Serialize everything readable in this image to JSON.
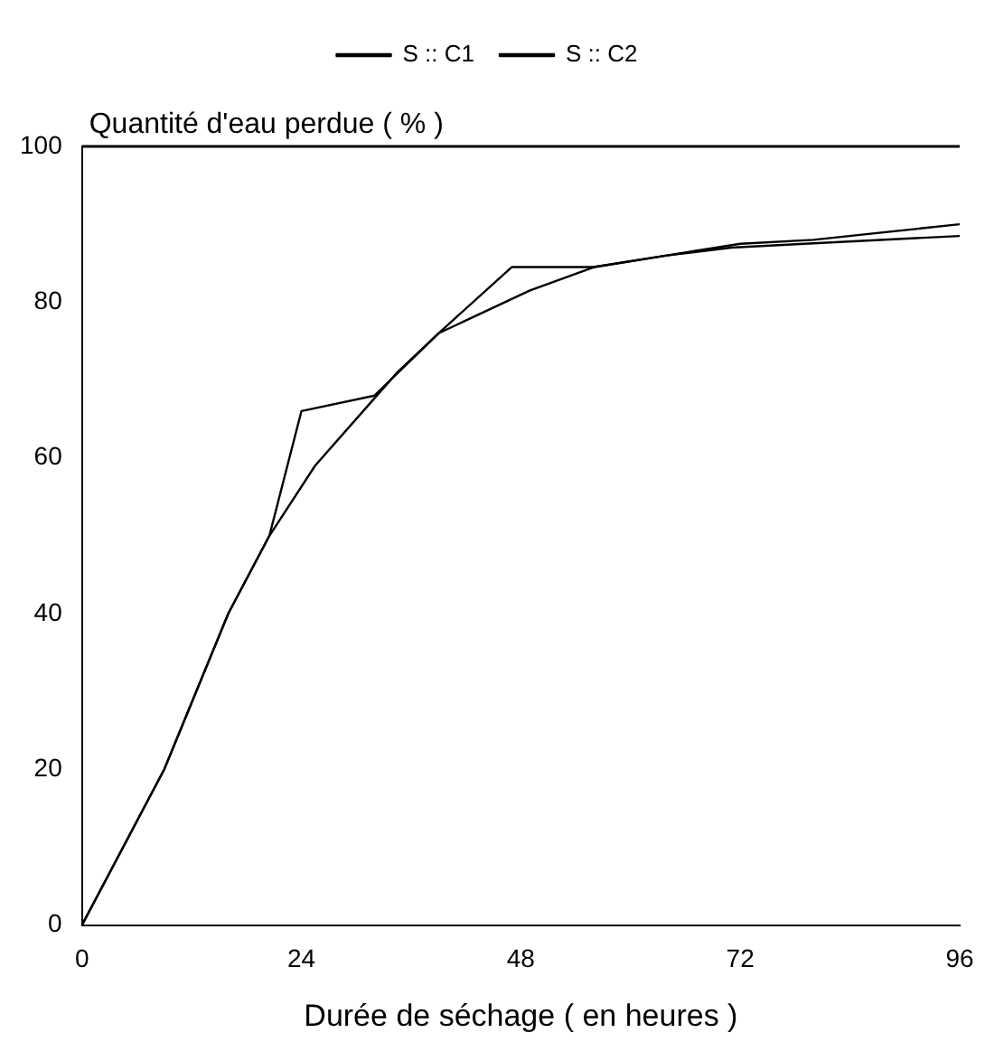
{
  "chart_data": {
    "type": "line",
    "xlabel": "Durée de séchage ( en heures )",
    "ylabel": "Quantité d'eau perdue ( % )",
    "xlim": [
      0,
      96
    ],
    "xticks": [
      0,
      24,
      48,
      72,
      96
    ],
    "ylim": [
      0,
      100
    ],
    "yticks": [
      0,
      20,
      40,
      60,
      80,
      100
    ],
    "grid": false,
    "legend": "top",
    "marker": "none",
    "line_style": "solid",
    "series": [
      {
        "name": "S :: C1",
        "color": "#000000",
        "x": [
          0,
          9,
          16,
          20.5,
          24,
          32,
          39,
          47,
          56,
          64,
          72,
          80,
          96
        ],
        "values": [
          0,
          20,
          40,
          50,
          66,
          68,
          76,
          84.5,
          84.5,
          86,
          87.5,
          88,
          90
        ]
      },
      {
        "name": "S :: C2",
        "color": "#000000",
        "x": [
          0,
          9,
          16,
          20.5,
          25.5,
          34.5,
          39,
          49,
          56,
          64,
          71,
          79,
          96
        ],
        "values": [
          0,
          20,
          40,
          50,
          59,
          71,
          76,
          81.5,
          84.5,
          86,
          87,
          87.5,
          88.5
        ]
      }
    ]
  }
}
